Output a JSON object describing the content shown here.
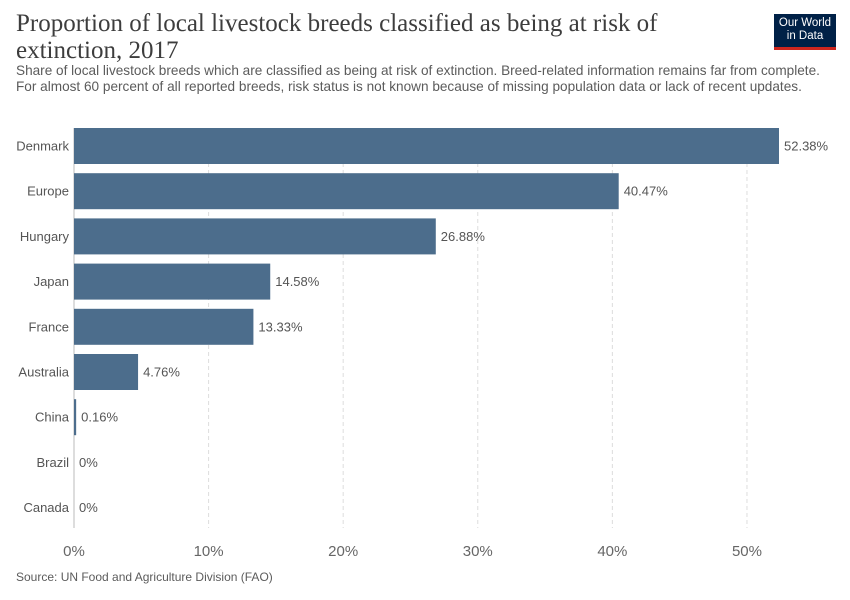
{
  "header": {
    "title": "Proportion of local livestock breeds classified as being at risk of extinction, 2017",
    "subtitle": "Share of local livestock breeds which are classified as being at risk of extinction. Breed-related information remains far from complete. For almost 60 percent of all reported breeds, risk status is not known because of missing population data or lack of recent updates."
  },
  "logo": {
    "line1": "Our World",
    "line2": "in Data"
  },
  "footer": {
    "source": "Source: UN Food and Agriculture Division (FAO)"
  },
  "colors": {
    "bar": "#4c6d8c",
    "grid": "#dddddd"
  },
  "chart_data": {
    "type": "bar",
    "orientation": "horizontal",
    "categories": [
      "Denmark",
      "Europe",
      "Hungary",
      "Japan",
      "France",
      "Australia",
      "China",
      "Brazil",
      "Canada"
    ],
    "values": [
      52.38,
      40.47,
      26.88,
      14.58,
      13.33,
      4.76,
      0.16,
      0,
      0
    ],
    "value_labels": [
      "52.38%",
      "40.47%",
      "26.88%",
      "14.58%",
      "13.33%",
      "4.76%",
      "0.16%",
      "0%",
      "0%"
    ],
    "xlim": [
      0,
      52.38
    ],
    "x_ticks": [
      0,
      10,
      20,
      30,
      40,
      50
    ],
    "x_tick_labels": [
      "0%",
      "10%",
      "20%",
      "30%",
      "40%",
      "50%"
    ],
    "grid": "vertical-dashed"
  }
}
